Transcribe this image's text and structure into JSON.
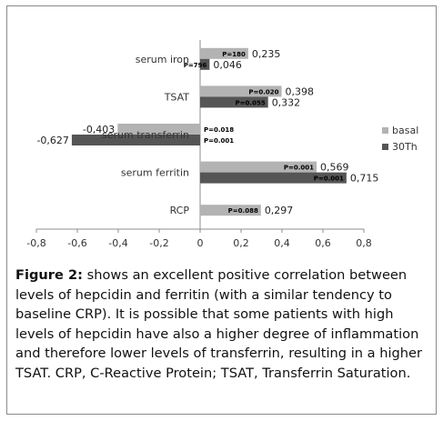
{
  "chart_data": {
    "type": "bar",
    "orientation": "horizontal",
    "categories": [
      "serum iron",
      "TSAT",
      "serum transferrin",
      "serum ferritin",
      "RCP"
    ],
    "series": [
      {
        "name": "basal",
        "color": "#b3b3b3",
        "values": [
          0.235,
          0.398,
          -0.403,
          0.569,
          0.297
        ],
        "value_labels": [
          "0,235",
          "0,398",
          "-0,403",
          "0,569",
          "0,297"
        ],
        "p_labels": [
          "P=180",
          "P=0.020",
          "P=0.018",
          "P=0.001",
          "P=0.088"
        ]
      },
      {
        "name": "30Th",
        "color": "#555555",
        "values": [
          0.046,
          0.332,
          -0.627,
          0.715,
          null
        ],
        "value_labels": [
          "0,046",
          "0,332",
          "-0,627",
          "0,715",
          ""
        ],
        "p_labels": [
          "P=796",
          "P=0.055",
          "P=0.001",
          "P=0.001",
          ""
        ]
      }
    ],
    "xlim": [
      -0.8,
      0.8
    ],
    "xticks": [
      -0.8,
      -0.6,
      -0.4,
      -0.2,
      0,
      0.2,
      0.4,
      0.6,
      0.8
    ],
    "xtick_labels": [
      "-0,8",
      "-0,6",
      "-0,4",
      "-0,2",
      "0",
      "0,2",
      "0,4",
      "0,6",
      "0,8"
    ],
    "legend": [
      "basal",
      "30Th"
    ],
    "legend_position": "right",
    "grid": false,
    "title": "",
    "xlabel": "",
    "ylabel": ""
  },
  "caption": {
    "label": "Figure 2:",
    "text": " shows an excellent positive correlation between levels of hepcidin and ferritin (with a similar tendency to baseline CRP). It is possible that some patients with high levels of hepcidin have also a higher degree of inflammation and therefore lower levels of transferrin, resulting in a higher TSAT. CRP, C-Reactive Protein; TSAT, Transferrin Saturation."
  }
}
